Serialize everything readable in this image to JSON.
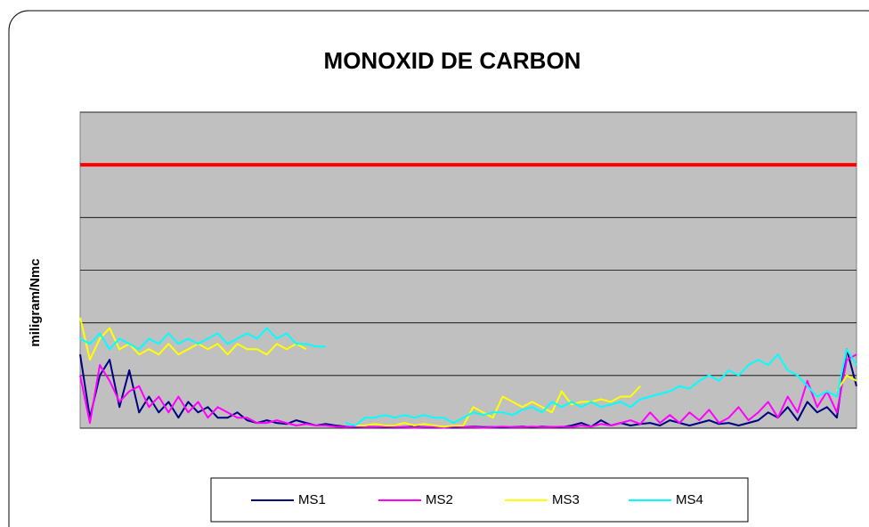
{
  "chart_data": {
    "type": "line",
    "title": "MONOXID DE CARBON",
    "y_label": "miligram/Nmc",
    "ylim": [
      0,
      6
    ],
    "yticks": [
      0,
      1,
      2,
      3,
      4,
      5,
      6
    ],
    "grid": true,
    "reference_line": {
      "value": 5,
      "color": "#ff0000"
    },
    "legend": "bottom",
    "series": [
      {
        "name": "MS1",
        "color": "#000080",
        "values": [
          1.4,
          0.2,
          1.0,
          1.3,
          0.4,
          1.1,
          0.3,
          0.6,
          0.3,
          0.5,
          0.2,
          0.5,
          0.3,
          0.4,
          0.2,
          0.2,
          0.3,
          0.15,
          0.1,
          0.15,
          0.1,
          0.08,
          0.15,
          0.1,
          0.05,
          0.08,
          0.05,
          0.03,
          0.02,
          0.03,
          0.02,
          0.02,
          0.01,
          0.02,
          0.03,
          0.02,
          0.01,
          0.02,
          0.01,
          0.02,
          0.03,
          0.02,
          0.02,
          0.01,
          0.02,
          0.03,
          0.02,
          0.03,
          0.02,
          0.02,
          0.05,
          0.1,
          0.03,
          0.15,
          0.05,
          0.1,
          0.05,
          0.08,
          0.1,
          0.05,
          0.15,
          0.1,
          0.05,
          0.1,
          0.15,
          0.08,
          0.1,
          0.05,
          0.1,
          0.15,
          0.3,
          0.2,
          0.4,
          0.15,
          0.5,
          0.3,
          0.4,
          0.2,
          1.5,
          0.8
        ]
      },
      {
        "name": "MS2",
        "color": "#ff00ff",
        "values": [
          1.0,
          0.1,
          1.2,
          0.9,
          0.5,
          0.7,
          0.8,
          0.4,
          0.6,
          0.3,
          0.6,
          0.3,
          0.5,
          0.2,
          0.4,
          0.3,
          0.2,
          0.2,
          0.1,
          0.1,
          0.15,
          0.1,
          0.05,
          0.08,
          0.05,
          0.05,
          0.03,
          0.02,
          0.03,
          0.02,
          0.02,
          0.03,
          0.02,
          0.02,
          0.01,
          0.02,
          0.02,
          0.01,
          0.03,
          0.02,
          0.02,
          0.01,
          0.02,
          0.03,
          0.02,
          0.02,
          0.03,
          0.02,
          0.02,
          0.03,
          0.02,
          0.05,
          0.03,
          0.08,
          0.05,
          0.1,
          0.15,
          0.08,
          0.3,
          0.1,
          0.25,
          0.1,
          0.3,
          0.15,
          0.35,
          0.1,
          0.2,
          0.4,
          0.15,
          0.3,
          0.5,
          0.2,
          0.6,
          0.3,
          0.9,
          0.4,
          0.7,
          0.3,
          1.3,
          1.4
        ]
      },
      {
        "name": "MS3",
        "color": "#ffff00",
        "values": [
          2.1,
          1.3,
          1.7,
          1.9,
          1.5,
          1.6,
          1.4,
          1.5,
          1.4,
          1.6,
          1.4,
          1.5,
          1.6,
          1.5,
          1.6,
          1.4,
          1.6,
          1.5,
          1.5,
          1.4,
          1.6,
          1.5,
          1.6,
          1.5,
          null,
          null,
          null,
          null,
          0.05,
          0.05,
          0.08,
          0.05,
          0.05,
          0.1,
          0.05,
          0.08,
          0.05,
          0.03,
          0.05,
          0.05,
          0.4,
          0.3,
          0.2,
          0.6,
          0.5,
          0.4,
          0.5,
          0.4,
          0.3,
          0.7,
          0.45,
          0.5,
          0.5,
          0.55,
          0.5,
          0.6,
          0.6,
          0.8,
          null,
          null,
          null,
          null,
          null,
          null,
          null,
          null,
          null,
          null,
          null,
          null,
          null,
          null,
          null,
          null,
          null,
          null,
          null,
          0.7,
          1.0,
          0.9
        ]
      },
      {
        "name": "MS4",
        "color": "#00ffff",
        "values": [
          1.7,
          1.6,
          1.8,
          1.5,
          1.7,
          1.6,
          1.5,
          1.7,
          1.6,
          1.8,
          1.6,
          1.7,
          1.6,
          1.7,
          1.8,
          1.6,
          1.7,
          1.8,
          1.7,
          1.9,
          1.7,
          1.8,
          1.6,
          1.6,
          1.55,
          1.55,
          null,
          0.1,
          0.05,
          0.2,
          0.2,
          0.25,
          0.2,
          0.25,
          0.2,
          0.25,
          0.2,
          0.2,
          0.1,
          0.2,
          0.3,
          0.25,
          0.3,
          0.3,
          0.25,
          0.35,
          0.4,
          0.3,
          0.5,
          0.4,
          0.5,
          0.4,
          0.5,
          0.4,
          0.45,
          0.5,
          0.4,
          0.55,
          0.6,
          0.65,
          0.7,
          0.8,
          0.75,
          0.9,
          1.0,
          0.9,
          1.1,
          1.0,
          1.2,
          1.3,
          1.2,
          1.4,
          1.1,
          1.0,
          0.8,
          0.6,
          0.7,
          0.6,
          1.5,
          1.2
        ]
      }
    ]
  }
}
